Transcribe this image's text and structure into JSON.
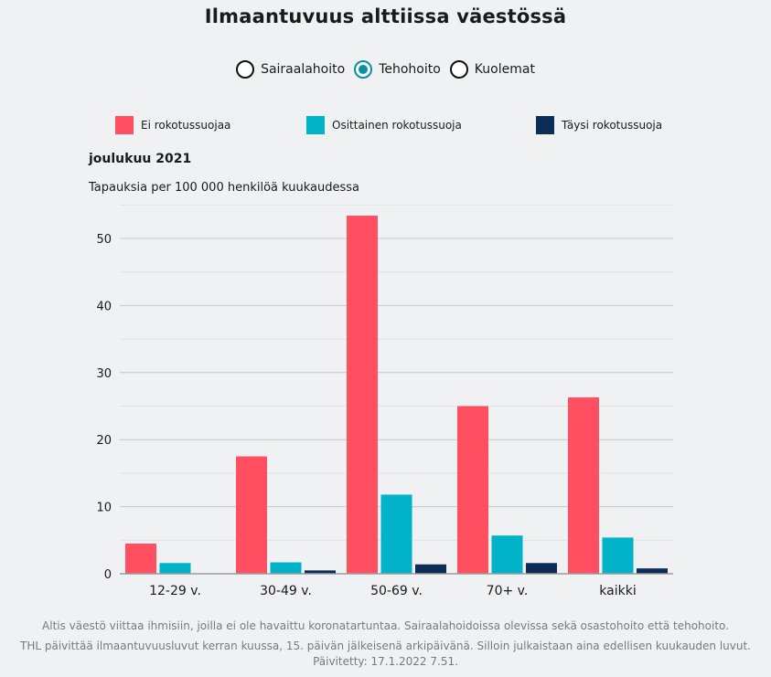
{
  "title": "Ilmaantuvuus alttiissa väestössä",
  "radio_options": [
    {
      "label": "Sairaalahoito",
      "selected": false
    },
    {
      "label": "Tehohoito",
      "selected": true
    },
    {
      "label": "Kuolemat",
      "selected": false
    }
  ],
  "colors": {
    "unvaccinated": "#ff4f60",
    "partial": "#00b3c8",
    "full": "#0c2d55",
    "accent": "#0a8fa6"
  },
  "chart_data": {
    "type": "bar",
    "title": "joulukuu 2021",
    "ylabel": "Tapauksia per 100 000 henkilöä kuukaudessa",
    "xlabel": "",
    "categories": [
      "12-29 v.",
      "30-49 v.",
      "50-69 v.",
      "70+ v.",
      "kaikki"
    ],
    "series": [
      {
        "name": "Ei rokotussuojaa",
        "values": [
          4.5,
          17.5,
          53.4,
          25.0,
          26.3
        ]
      },
      {
        "name": "Osittainen rokotussuoja",
        "values": [
          1.6,
          1.7,
          11.8,
          5.7,
          5.4
        ]
      },
      {
        "name": "Täysi rokotussuoja",
        "values": [
          0.0,
          0.5,
          1.4,
          1.6,
          0.8
        ]
      }
    ],
    "ylim": [
      0,
      55
    ],
    "yticks": [
      0,
      10,
      20,
      30,
      40,
      50
    ],
    "grid": true,
    "legend": "top"
  },
  "footer": {
    "note1": "Altis väestö viittaa ihmisiin, joilla ei ole havaittu koronatartuntaa. Sairaalahoidoissa olevissa sekä osastohoito että tehohoito.",
    "note2": "THL päivittää ilmaantuvuusluvut kerran kuussa, 15. päivän jälkeisenä arkipäivänä. Silloin julkaistaan aina edellisen kuukauden luvut. Päivitetty: 17.1.2022 7.51."
  }
}
